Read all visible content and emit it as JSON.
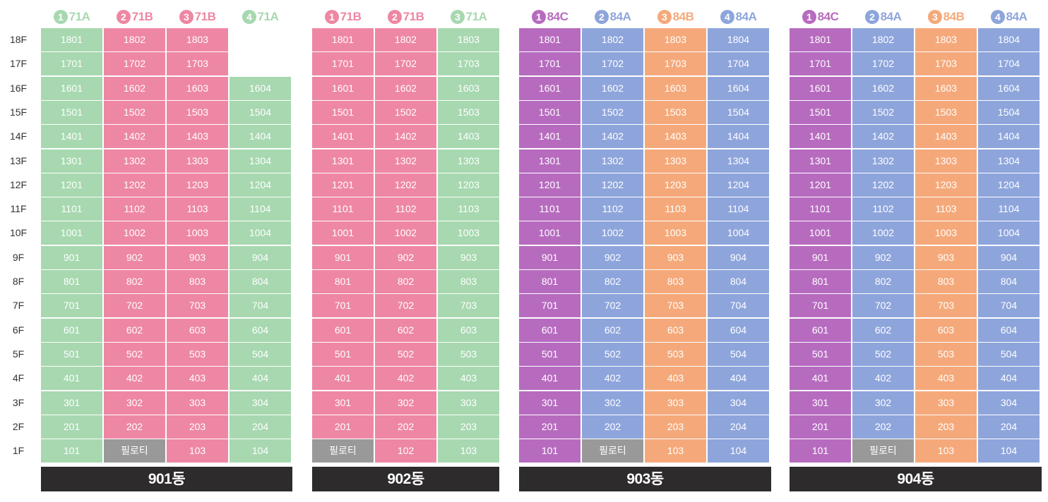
{
  "colors": {
    "green": "#a7d8b0",
    "pink": "#ee87a3",
    "purple": "#b76bbf",
    "blue": "#8ea5dc",
    "orange": "#f5a97a",
    "gray": "#999999",
    "footer": "#2d2b2b"
  },
  "floors": [
    "18F",
    "17F",
    "16F",
    "15F",
    "14F",
    "13F",
    "12F",
    "11F",
    "10F",
    "9F",
    "8F",
    "7F",
    "6F",
    "5F",
    "4F",
    "3F",
    "2F",
    "1F"
  ],
  "buildings": [
    {
      "name": "901동",
      "columns": [
        {
          "num": "1",
          "type": "71A",
          "color": "green",
          "top_floor": 18,
          "special": {}
        },
        {
          "num": "2",
          "type": "71B",
          "color": "pink",
          "top_floor": 18,
          "special": {
            "1": "필로티"
          }
        },
        {
          "num": "3",
          "type": "71B",
          "color": "pink",
          "top_floor": 18,
          "special": {}
        },
        {
          "num": "4",
          "type": "71A",
          "color": "green",
          "top_floor": 16,
          "special": {}
        }
      ]
    },
    {
      "name": "902동",
      "columns": [
        {
          "num": "1",
          "type": "71B",
          "color": "pink",
          "top_floor": 18,
          "special": {
            "1": "필로티"
          }
        },
        {
          "num": "2",
          "type": "71B",
          "color": "pink",
          "top_floor": 18,
          "special": {}
        },
        {
          "num": "3",
          "type": "71A",
          "color": "green",
          "top_floor": 18,
          "special": {}
        }
      ]
    },
    {
      "name": "903동",
      "columns": [
        {
          "num": "1",
          "type": "84C",
          "color": "purple",
          "top_floor": 18,
          "special": {}
        },
        {
          "num": "2",
          "type": "84A",
          "color": "blue",
          "top_floor": 18,
          "special": {
            "1": "필로티"
          }
        },
        {
          "num": "3",
          "type": "84B",
          "color": "orange",
          "top_floor": 18,
          "special": {}
        },
        {
          "num": "4",
          "type": "84A",
          "color": "blue",
          "top_floor": 18,
          "special": {}
        }
      ]
    },
    {
      "name": "904동",
      "columns": [
        {
          "num": "1",
          "type": "84C",
          "color": "purple",
          "top_floor": 18,
          "special": {}
        },
        {
          "num": "2",
          "type": "84A",
          "color": "blue",
          "top_floor": 18,
          "special": {
            "1": "필로티"
          }
        },
        {
          "num": "3",
          "type": "84B",
          "color": "orange",
          "top_floor": 18,
          "special": {}
        },
        {
          "num": "4",
          "type": "84A",
          "color": "blue",
          "top_floor": 18,
          "special": {}
        }
      ]
    }
  ]
}
